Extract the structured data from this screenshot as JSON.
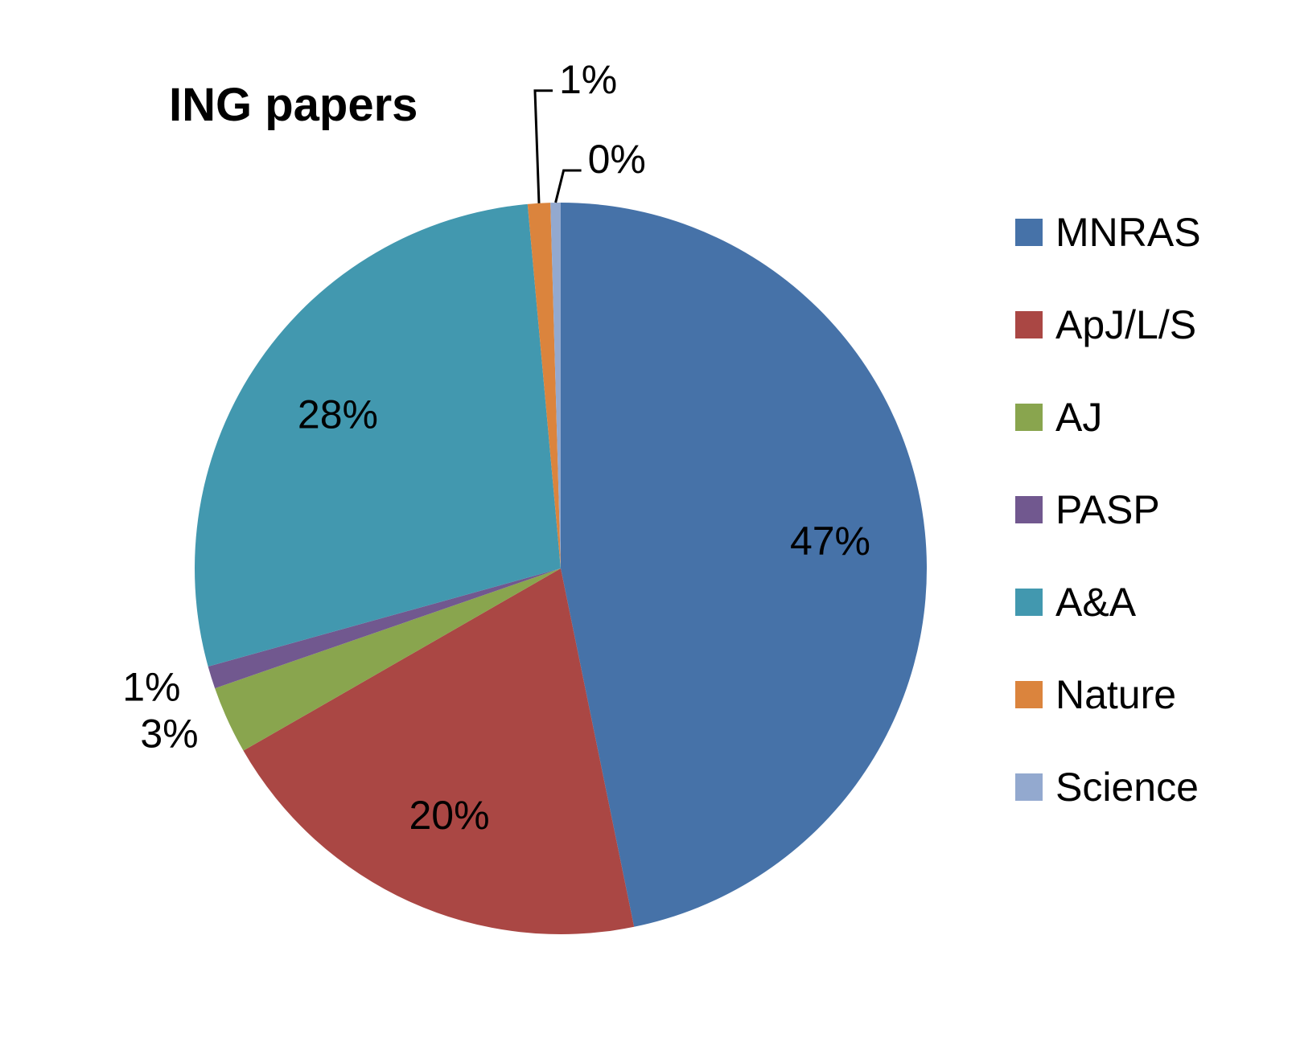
{
  "chart_data": {
    "type": "pie",
    "title": "ING papers",
    "start_angle_deg": 0,
    "direction": "clockwise",
    "legend_position": "right",
    "categories": [
      "MNRAS",
      "ApJ/L/S",
      "AJ",
      "PASP",
      "A&A",
      "Nature",
      "Science"
    ],
    "values": [
      47,
      20,
      3,
      1,
      28,
      1,
      0
    ],
    "labels": [
      "47%",
      "20%",
      "3%",
      "1%",
      "28%",
      "1%",
      "0%"
    ],
    "colors": [
      "#4672A8",
      "#AA4744",
      "#89A54E",
      "#71588F",
      "#4298AF",
      "#DB843D",
      "#93A9CF"
    ]
  }
}
